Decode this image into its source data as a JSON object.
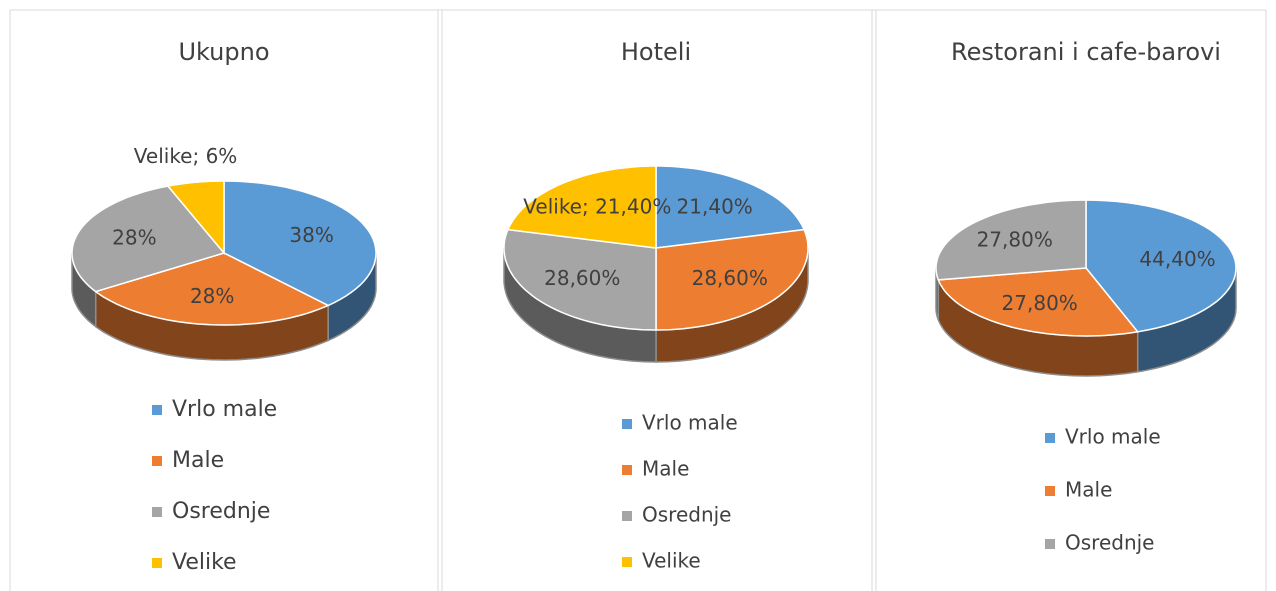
{
  "chart_data": [
    {
      "type": "pie",
      "title": "Ukupno",
      "categories": [
        "Vrlo male",
        "Male",
        "Osrednje",
        "Velike"
      ],
      "values": [
        38,
        28,
        28,
        6
      ],
      "value_labels": [
        "38%",
        "28%",
        "28%",
        "Velike; 6%"
      ],
      "colors": [
        "#5b9bd5",
        "#ed7d31",
        "#a5a5a5",
        "#ffc000"
      ]
    },
    {
      "type": "pie",
      "title": "Hoteli",
      "categories": [
        "Vrlo male",
        "Male",
        "Osrednje",
        "Velike"
      ],
      "values": [
        21.4,
        28.6,
        28.6,
        21.4
      ],
      "value_labels": [
        "21,40%",
        "28,60%",
        "28,60%",
        "Velike; 21,40%"
      ],
      "colors": [
        "#5b9bd5",
        "#ed7d31",
        "#a5a5a5",
        "#ffc000"
      ]
    },
    {
      "type": "pie",
      "title": "Restorani i cafe-barovi",
      "categories": [
        "Vrlo male",
        "Male",
        "Osrednje"
      ],
      "values": [
        44.4,
        27.8,
        27.8
      ],
      "value_labels": [
        "44,40%",
        "27,80%",
        "27,80%"
      ],
      "colors": [
        "#5b9bd5",
        "#ed7d31",
        "#a5a5a5"
      ]
    }
  ]
}
